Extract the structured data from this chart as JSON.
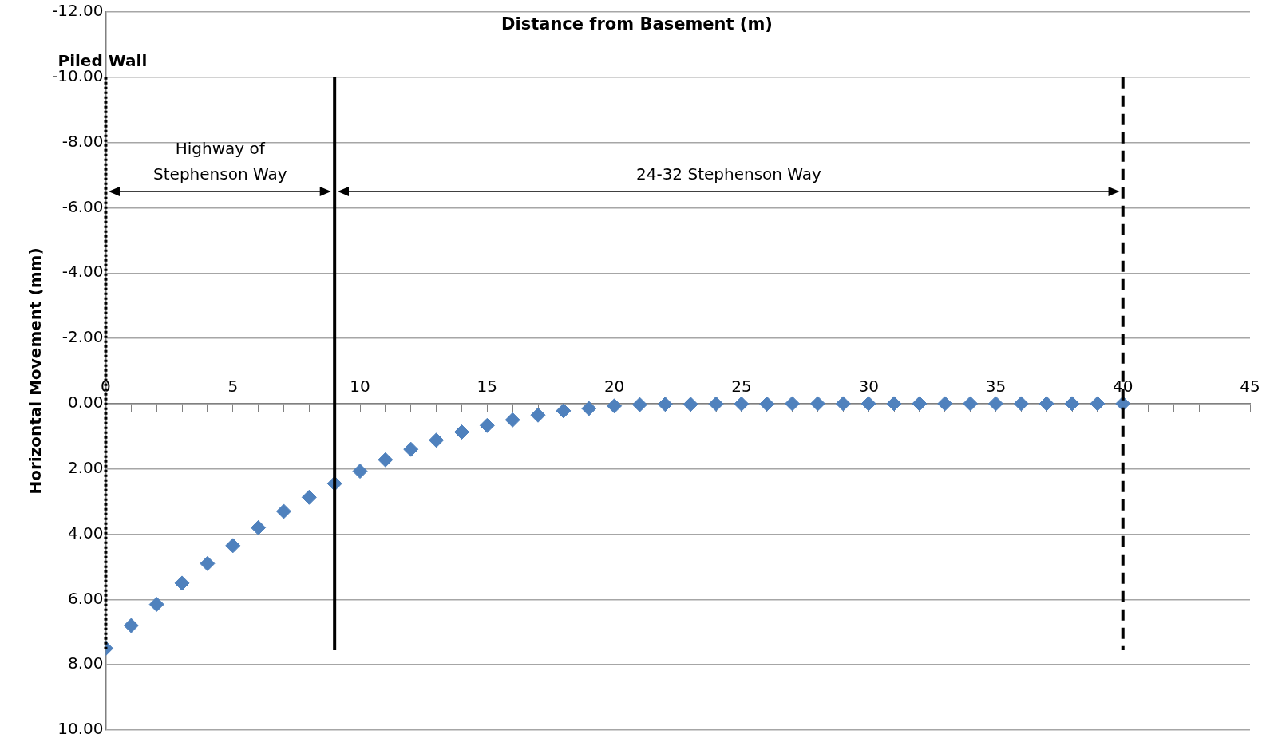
{
  "chart_data": {
    "type": "scatter",
    "xlabel": "Distance from Basement (m)",
    "ylabel": "Horizontal Movement (mm)",
    "x": [
      0,
      1,
      2,
      3,
      4,
      5,
      6,
      7,
      8,
      9,
      10,
      11,
      12,
      13,
      14,
      15,
      16,
      17,
      18,
      19,
      20,
      21,
      22,
      23,
      24,
      25,
      26,
      27,
      28,
      29,
      30,
      31,
      32,
      33,
      34,
      35,
      36,
      37,
      38,
      39,
      40
    ],
    "series": [
      {
        "color": "#4f81bd",
        "values": [
          7.5,
          6.8,
          6.15,
          5.5,
          4.9,
          4.35,
          3.8,
          3.3,
          2.87,
          2.45,
          2.07,
          1.72,
          1.4,
          1.12,
          0.87,
          0.67,
          0.5,
          0.35,
          0.22,
          0.15,
          0.07,
          0.03,
          0.02,
          0.02,
          0.01,
          0.01,
          0.01,
          0,
          0,
          0,
          0,
          0,
          0,
          0,
          0,
          0,
          0,
          0,
          0,
          0,
          0
        ]
      }
    ],
    "marker": "diamond",
    "grid": "y",
    "legend": false,
    "xlim": [
      0,
      45
    ],
    "xticks": [
      0,
      {
        "value": 1,
        "label": null
      },
      {
        "value": 2,
        "label": null
      },
      {
        "value": 3,
        "label": null
      },
      {
        "value": 4,
        "label": null
      },
      5,
      {
        "value": 6,
        "label": null
      },
      {
        "value": 7,
        "label": null
      },
      {
        "value": 8,
        "label": null
      },
      {
        "value": 9,
        "label": null
      },
      10,
      {
        "value": 11,
        "label": null
      },
      {
        "value": 12,
        "label": null
      },
      {
        "value": 13,
        "label": null
      },
      {
        "value": 14,
        "label": null
      },
      15,
      {
        "value": 16,
        "label": null
      },
      {
        "value": 17,
        "label": null
      },
      {
        "value": 18,
        "label": null
      },
      {
        "value": 19,
        "label": null
      },
      20,
      {
        "value": 21,
        "label": null
      },
      {
        "value": 22,
        "label": null
      },
      {
        "value": 23,
        "label": null
      },
      {
        "value": 24,
        "label": null
      },
      25,
      {
        "value": 26,
        "label": null
      },
      {
        "value": 27,
        "label": null
      },
      {
        "value": 28,
        "label": null
      },
      {
        "value": 29,
        "label": null
      },
      30,
      {
        "value": 31,
        "label": null
      },
      {
        "value": 32,
        "label": null
      },
      {
        "value": 33,
        "label": null
      },
      {
        "value": 34,
        "label": null
      },
      35,
      {
        "value": 36,
        "label": null
      },
      {
        "value": 37,
        "label": null
      },
      {
        "value": 38,
        "label": null
      },
      {
        "value": 39,
        "label": null
      },
      40,
      {
        "value": 41,
        "label": null
      },
      {
        "value": 42,
        "label": null
      },
      {
        "value": 43,
        "label": null
      },
      {
        "value": 44,
        "label": null
      },
      45
    ],
    "ylim": [
      10,
      -12
    ],
    "yticks": [
      {
        "value": -12,
        "label": "-12.00"
      },
      {
        "value": -10,
        "label": "-10.00"
      },
      {
        "value": -8,
        "label": "-8.00"
      },
      {
        "value": -6,
        "label": "-6.00"
      },
      {
        "value": -4,
        "label": "-4.00"
      },
      {
        "value": -2,
        "label": "-2.00"
      },
      {
        "value": 0,
        "label": "0.00"
      },
      {
        "value": 2,
        "label": "2.00"
      },
      {
        "value": 4,
        "label": "4.00"
      },
      {
        "value": 6,
        "label": "6.00"
      },
      {
        "value": 8,
        "label": "8.00"
      },
      {
        "value": 10,
        "label": "10.00"
      }
    ],
    "ref_lines": [
      {
        "axis": "x",
        "value": 0,
        "label": "Piled Wall",
        "line_style": "dotted",
        "color": "#000000"
      },
      {
        "axis": "x",
        "value": 9,
        "line_style": "solid",
        "color": "#000000"
      },
      {
        "axis": "x",
        "value": 40,
        "line_style": "dashed",
        "color": "#000000"
      }
    ],
    "annotations": [
      "Highway of\nStephenson Way",
      "24-32 Stephenson Way"
    ]
  }
}
